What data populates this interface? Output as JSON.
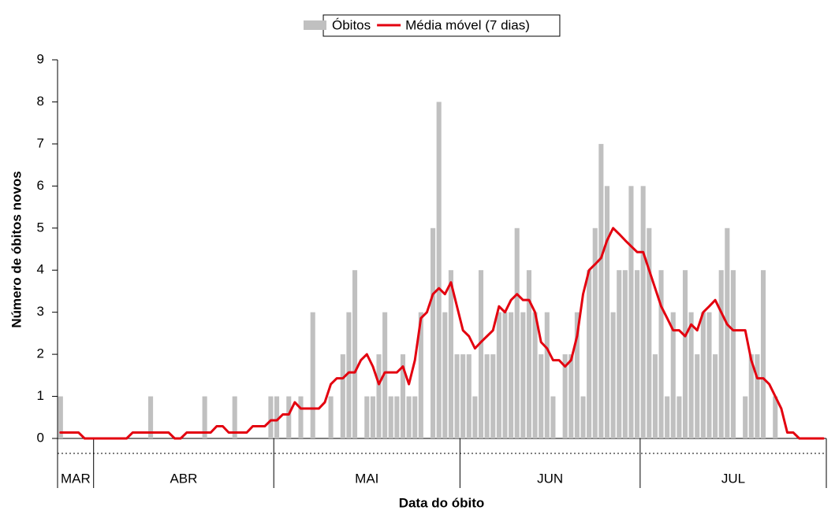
{
  "chart_data": {
    "type": "bar",
    "categories": [
      "MAR",
      "MAR",
      "MAR",
      "MAR",
      "MAR",
      "MAR",
      "ABR",
      "ABR",
      "ABR",
      "ABR",
      "ABR",
      "ABR",
      "ABR",
      "ABR",
      "ABR",
      "ABR",
      "ABR",
      "ABR",
      "ABR",
      "ABR",
      "ABR",
      "ABR",
      "ABR",
      "ABR",
      "ABR",
      "ABR",
      "ABR",
      "ABR",
      "ABR",
      "ABR",
      "ABR",
      "ABR",
      "ABR",
      "ABR",
      "ABR",
      "ABR",
      "MAI",
      "MAI",
      "MAI",
      "MAI",
      "MAI",
      "MAI",
      "MAI",
      "MAI",
      "MAI",
      "MAI",
      "MAI",
      "MAI",
      "MAI",
      "MAI",
      "MAI",
      "MAI",
      "MAI",
      "MAI",
      "MAI",
      "MAI",
      "MAI",
      "MAI",
      "MAI",
      "MAI",
      "MAI",
      "MAI",
      "MAI",
      "MAI",
      "MAI",
      "MAI",
      "MAI",
      "JUN",
      "JUN",
      "JUN",
      "JUN",
      "JUN",
      "JUN",
      "JUN",
      "JUN",
      "JUN",
      "JUN",
      "JUN",
      "JUN",
      "JUN",
      "JUN",
      "JUN",
      "JUN",
      "JUN",
      "JUN",
      "JUN",
      "JUN",
      "JUN",
      "JUN",
      "JUN",
      "JUN",
      "JUN",
      "JUN",
      "JUN",
      "JUN",
      "JUN",
      "JUN",
      "JUL",
      "JUL",
      "JUL",
      "JUL",
      "JUL",
      "JUL",
      "JUL",
      "JUL",
      "JUL",
      "JUL",
      "JUL",
      "JUL",
      "JUL",
      "JUL",
      "JUL",
      "JUL",
      "JUL",
      "JUL",
      "JUL",
      "JUL",
      "JUL",
      "JUL",
      "JUL",
      "JUL",
      "JUL",
      "JUL",
      "JUL",
      "JUL",
      "JUL",
      "JUL",
      "JUL"
    ],
    "series": [
      {
        "name": "Óbitos",
        "type": "bar",
        "color": "#c0c0c0",
        "values": [
          1,
          0,
          0,
          0,
          0,
          0,
          0,
          0,
          0,
          0,
          0,
          0,
          0,
          0,
          0,
          1,
          0,
          0,
          0,
          0,
          0,
          0,
          0,
          0,
          1,
          0,
          0,
          0,
          0,
          1,
          0,
          0,
          0,
          0,
          0,
          1,
          1,
          0,
          1,
          0,
          1,
          0,
          3,
          0,
          0,
          1,
          0,
          2,
          3,
          4,
          0,
          1,
          1,
          2,
          3,
          1,
          1,
          2,
          1,
          1,
          3,
          0,
          5,
          8,
          3,
          4,
          2,
          2,
          2,
          1,
          4,
          2,
          2,
          3,
          3,
          3,
          5,
          3,
          4,
          3,
          2,
          3,
          1,
          0,
          2,
          2,
          3,
          1,
          4,
          5,
          7,
          6,
          3,
          4,
          4,
          6,
          4,
          6,
          5,
          2,
          4,
          1,
          3,
          1,
          4,
          3,
          2,
          3,
          3,
          2,
          4,
          5,
          4,
          0,
          1,
          2,
          2,
          4,
          0,
          1,
          0,
          0,
          0,
          0,
          0,
          0,
          0,
          0
        ]
      },
      {
        "name": "Média móvel (7 dias)",
        "type": "line",
        "color": "#e3000f",
        "values": [
          0.14,
          0.14,
          0.14,
          0.14,
          0,
          0,
          0,
          0,
          0,
          0,
          0,
          0,
          0.14,
          0.14,
          0.14,
          0.14,
          0.14,
          0.14,
          0.14,
          0,
          0,
          0.14,
          0.14,
          0.14,
          0.14,
          0.14,
          0.29,
          0.29,
          0.14,
          0.14,
          0.14,
          0.14,
          0.29,
          0.29,
          0.29,
          0.43,
          0.43,
          0.57,
          0.57,
          0.86,
          0.71,
          0.71,
          0.71,
          0.71,
          0.86,
          1.29,
          1.43,
          1.43,
          1.57,
          1.57,
          1.86,
          2,
          1.71,
          1.29,
          1.57,
          1.57,
          1.57,
          1.71,
          1.29,
          1.86,
          2.86,
          3,
          3.43,
          3.57,
          3.43,
          3.71,
          3.14,
          2.57,
          2.43,
          2.14,
          2.29,
          2.43,
          2.57,
          3.14,
          3,
          3.29,
          3.43,
          3.29,
          3.29,
          3,
          2.29,
          2.14,
          1.86,
          1.86,
          1.71,
          1.86,
          2.43,
          3.43,
          4,
          4.14,
          4.29,
          4.71,
          5,
          4.86,
          4.71,
          4.57,
          4.43,
          4.43,
          4,
          3.57,
          3.14,
          2.86,
          2.57,
          2.57,
          2.43,
          2.71,
          2.57,
          3,
          3.14,
          3.29,
          3,
          2.71,
          2.57,
          2.57,
          2.57,
          1.86,
          1.43,
          1.43,
          1.29,
          1,
          0.71,
          0.14,
          0.14,
          0,
          0,
          0,
          0,
          0
        ]
      }
    ],
    "x_label": "Data do óbito",
    "y_label": "Número de óbitos novos",
    "ylim": [
      0,
      9
    ],
    "yticks": [
      0,
      1,
      2,
      3,
      4,
      5,
      6,
      7,
      8,
      9
    ],
    "grid": false,
    "legend": "top"
  }
}
